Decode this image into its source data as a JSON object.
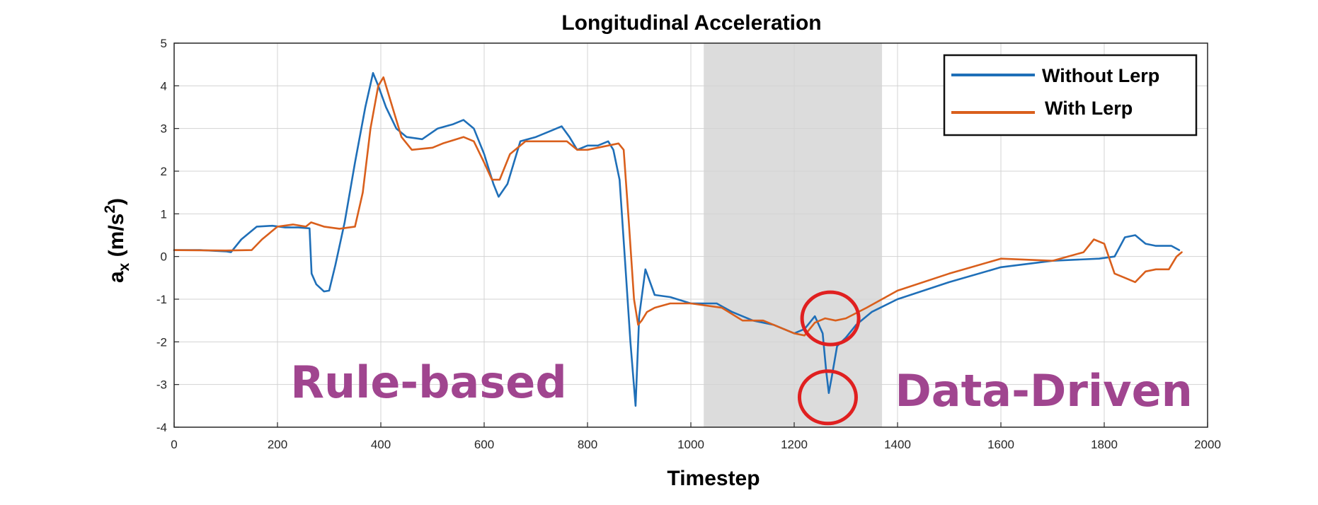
{
  "chart_data": {
    "type": "line",
    "title": "Longitudinal Acceleration",
    "xlabel": "Timestep",
    "ylabel_main": "a",
    "ylabel_sub": "x",
    "ylabel_unit_open": " (m/s",
    "ylabel_unit_sup": "2",
    "ylabel_unit_close": ")",
    "xlim": [
      0,
      2000
    ],
    "ylim": [
      -4,
      5
    ],
    "xticks": [
      0,
      200,
      400,
      600,
      800,
      1000,
      1200,
      1400,
      1600,
      1800,
      2000
    ],
    "yticks": [
      -4,
      -3,
      -2,
      -1,
      0,
      1,
      2,
      3,
      4,
      5
    ],
    "grid": true,
    "legend_position": "top-right",
    "shaded_region": [
      1025,
      1370
    ],
    "colors": {
      "shade": "#dcdcdc",
      "annotation": "#a0458f",
      "circle": "#e02020"
    },
    "annotations": [
      {
        "text": "Rule-based",
        "x": 225,
        "y": -3.3
      },
      {
        "text": "Data-Driven",
        "x": 1395,
        "y": -3.5
      }
    ],
    "highlight_circles": [
      {
        "x": 1270,
        "y": -1.45
      },
      {
        "x": 1265,
        "y": -3.3
      }
    ],
    "series": [
      {
        "name": "Without Lerp",
        "color": "#1f6fb8",
        "points": [
          [
            0,
            0.15
          ],
          [
            50,
            0.15
          ],
          [
            100,
            0.12
          ],
          [
            110,
            0.1
          ],
          [
            130,
            0.4
          ],
          [
            160,
            0.7
          ],
          [
            190,
            0.72
          ],
          [
            215,
            0.68
          ],
          [
            240,
            0.68
          ],
          [
            262,
            0.66
          ],
          [
            266,
            -0.4
          ],
          [
            275,
            -0.65
          ],
          [
            290,
            -0.82
          ],
          [
            300,
            -0.8
          ],
          [
            312,
            -0.2
          ],
          [
            330,
            0.8
          ],
          [
            350,
            2.2
          ],
          [
            370,
            3.5
          ],
          [
            385,
            4.3
          ],
          [
            395,
            4.0
          ],
          [
            410,
            3.5
          ],
          [
            430,
            3.0
          ],
          [
            450,
            2.8
          ],
          [
            480,
            2.75
          ],
          [
            510,
            3.0
          ],
          [
            540,
            3.1
          ],
          [
            560,
            3.2
          ],
          [
            580,
            3.0
          ],
          [
            600,
            2.4
          ],
          [
            618,
            1.7
          ],
          [
            628,
            1.4
          ],
          [
            645,
            1.7
          ],
          [
            670,
            2.7
          ],
          [
            700,
            2.8
          ],
          [
            730,
            2.95
          ],
          [
            750,
            3.05
          ],
          [
            765,
            2.8
          ],
          [
            780,
            2.5
          ],
          [
            800,
            2.6
          ],
          [
            820,
            2.6
          ],
          [
            840,
            2.7
          ],
          [
            850,
            2.5
          ],
          [
            862,
            1.8
          ],
          [
            872,
            0.0
          ],
          [
            883,
            -2.0
          ],
          [
            893,
            -3.5
          ],
          [
            900,
            -1.4
          ],
          [
            912,
            -0.3
          ],
          [
            930,
            -0.9
          ],
          [
            960,
            -0.95
          ],
          [
            1000,
            -1.1
          ],
          [
            1050,
            -1.1
          ],
          [
            1080,
            -1.3
          ],
          [
            1120,
            -1.5
          ],
          [
            1160,
            -1.6
          ],
          [
            1200,
            -1.8
          ],
          [
            1220,
            -1.7
          ],
          [
            1240,
            -1.4
          ],
          [
            1255,
            -1.8
          ],
          [
            1262,
            -2.7
          ],
          [
            1267,
            -3.2
          ],
          [
            1273,
            -2.8
          ],
          [
            1283,
            -2.1
          ],
          [
            1300,
            -1.9
          ],
          [
            1320,
            -1.6
          ],
          [
            1350,
            -1.3
          ],
          [
            1400,
            -1.0
          ],
          [
            1500,
            -0.6
          ],
          [
            1600,
            -0.25
          ],
          [
            1700,
            -0.1
          ],
          [
            1790,
            -0.05
          ],
          [
            1820,
            0.0
          ],
          [
            1840,
            0.45
          ],
          [
            1860,
            0.5
          ],
          [
            1880,
            0.3
          ],
          [
            1900,
            0.25
          ],
          [
            1930,
            0.25
          ],
          [
            1945,
            0.15
          ]
        ]
      },
      {
        "name": "With Lerp",
        "color": "#d95f1c",
        "points": [
          [
            0,
            0.15
          ],
          [
            100,
            0.14
          ],
          [
            150,
            0.15
          ],
          [
            170,
            0.4
          ],
          [
            200,
            0.7
          ],
          [
            230,
            0.75
          ],
          [
            255,
            0.7
          ],
          [
            265,
            0.8
          ],
          [
            290,
            0.7
          ],
          [
            320,
            0.65
          ],
          [
            350,
            0.7
          ],
          [
            365,
            1.5
          ],
          [
            380,
            3.0
          ],
          [
            395,
            4.0
          ],
          [
            405,
            4.2
          ],
          [
            420,
            3.6
          ],
          [
            440,
            2.8
          ],
          [
            460,
            2.5
          ],
          [
            500,
            2.55
          ],
          [
            520,
            2.65
          ],
          [
            560,
            2.8
          ],
          [
            580,
            2.7
          ],
          [
            600,
            2.2
          ],
          [
            615,
            1.8
          ],
          [
            630,
            1.8
          ],
          [
            650,
            2.4
          ],
          [
            680,
            2.7
          ],
          [
            720,
            2.7
          ],
          [
            760,
            2.7
          ],
          [
            780,
            2.5
          ],
          [
            800,
            2.5
          ],
          [
            840,
            2.6
          ],
          [
            860,
            2.65
          ],
          [
            870,
            2.5
          ],
          [
            880,
            0.8
          ],
          [
            890,
            -1.0
          ],
          [
            898,
            -1.6
          ],
          [
            905,
            -1.5
          ],
          [
            915,
            -1.3
          ],
          [
            930,
            -1.2
          ],
          [
            960,
            -1.1
          ],
          [
            1000,
            -1.1
          ],
          [
            1060,
            -1.2
          ],
          [
            1100,
            -1.5
          ],
          [
            1140,
            -1.5
          ],
          [
            1200,
            -1.8
          ],
          [
            1220,
            -1.85
          ],
          [
            1240,
            -1.55
          ],
          [
            1260,
            -1.45
          ],
          [
            1280,
            -1.5
          ],
          [
            1300,
            -1.45
          ],
          [
            1340,
            -1.2
          ],
          [
            1400,
            -0.8
          ],
          [
            1500,
            -0.4
          ],
          [
            1600,
            -0.05
          ],
          [
            1700,
            -0.1
          ],
          [
            1760,
            0.1
          ],
          [
            1780,
            0.4
          ],
          [
            1800,
            0.3
          ],
          [
            1820,
            -0.4
          ],
          [
            1840,
            -0.5
          ],
          [
            1860,
            -0.6
          ],
          [
            1880,
            -0.35
          ],
          [
            1900,
            -0.3
          ],
          [
            1925,
            -0.3
          ],
          [
            1940,
            0.0
          ],
          [
            1950,
            0.1
          ]
        ]
      }
    ]
  }
}
